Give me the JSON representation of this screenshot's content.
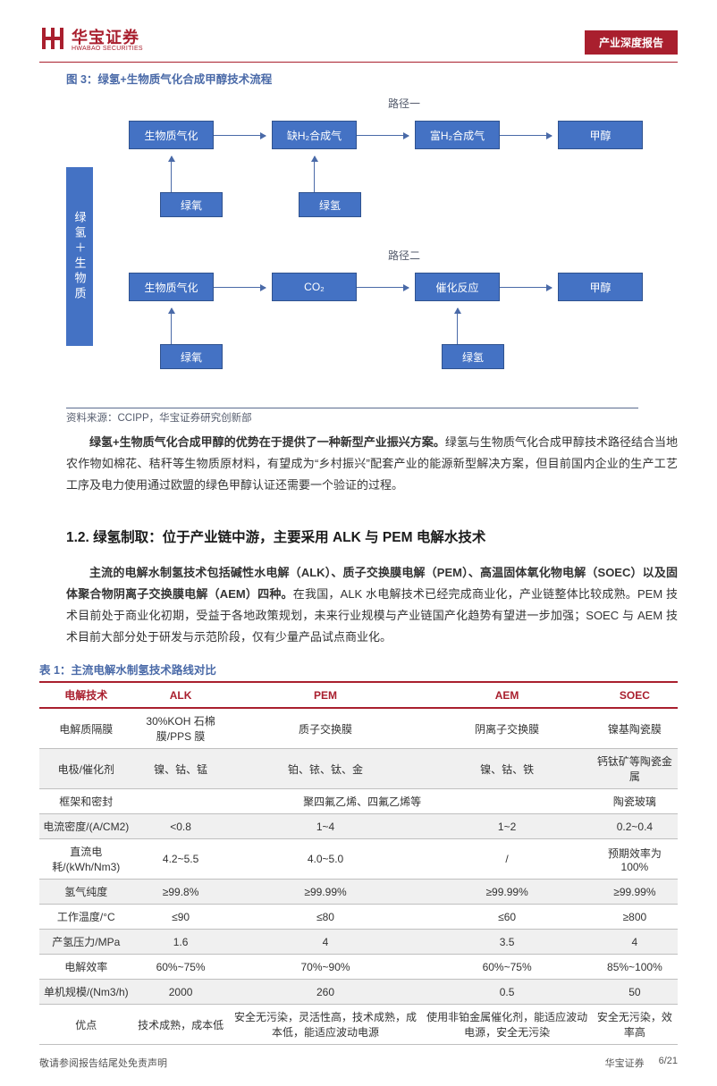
{
  "header": {
    "logo_cn": "华宝证券",
    "logo_en": "HWABAO SECURITIES",
    "badge": "产业深度报告"
  },
  "figure": {
    "title": "图 3：绿氢+生物质气化合成甲醇技术流程",
    "vbar": "绿氢＋生物质",
    "path1_label": "路径一",
    "path2_label": "路径二",
    "nodes": {
      "p1n1": "生物质气化",
      "p1n2": "缺H₂合成气",
      "p1n3": "富H₂合成气",
      "p1n4": "甲醇",
      "p1i1": "绿氧",
      "p1i2": "绿氢",
      "p2n1": "生物质气化",
      "p2n2": "CO₂",
      "p2n3": "催化反应",
      "p2n4": "甲醇",
      "p2i1": "绿氧",
      "p2i2": "绿氢"
    },
    "source": "资料来源：CCIPP，华宝证券研究创新部"
  },
  "para1_bold": "绿氢+生物质气化合成甲醇的优势在于提供了一种新型产业振兴方案。",
  "para1_rest": "绿氢与生物质气化合成甲醇技术路径结合当地农作物如棉花、秸秆等生物质原材料，有望成为“乡村振兴”配套产业的能源新型解决方案，但目前国内企业的生产工艺工序及电力使用通过欧盟的绿色甲醇认证还需要一个验证的过程。",
  "section_heading": "1.2. 绿氢制取：位于产业链中游，主要采用 ALK 与 PEM 电解水技术",
  "para2_bold": "主流的电解水制氢技术包括碱性水电解（ALK）、质子交换膜电解（PEM）、高温固体氧化物电解（SOEC）以及固体聚合物阴离子交换膜电解（AEM）四种。",
  "para2_rest": "在我国，ALK 水电解技术已经完成商业化，产业链整体比较成熟。PEM 技术目前处于商业化初期，受益于各地政策规划，未来行业规模与产业链国产化趋势有望进一步加强；SOEC 与 AEM 技术目前大部分处于研发与示范阶段，仅有少量产品试点商业化。",
  "table": {
    "title": "表 1：主流电解水制氢技术路线对比",
    "columns": [
      "电解技术",
      "ALK",
      "PEM",
      "AEM",
      "SOEC"
    ],
    "rows": [
      {
        "h": "电解质隔膜",
        "c": [
          "30%KOH 石棉膜/PPS 膜",
          "质子交换膜",
          "阴离子交换膜",
          "镍基陶瓷膜"
        ]
      },
      {
        "h": "电极/催化剂",
        "c": [
          "镍、钴、锰",
          "铂、铱、钛、金",
          "镍、钴、铁",
          "钙钛矿等陶瓷金属"
        ]
      },
      {
        "h": "框架和密封",
        "c": [
          "span3:聚四氟乙烯、四氟乙烯等",
          "",
          "",
          "陶瓷玻璃"
        ]
      },
      {
        "h": "电流密度/(A/CM2)",
        "c": [
          "<0.8",
          "1~4",
          "1~2",
          "0.2~0.4"
        ]
      },
      {
        "h": "直流电耗/(kWh/Nm3)",
        "c": [
          "4.2~5.5",
          "4.0~5.0",
          "/",
          "预期效率为 100%"
        ]
      },
      {
        "h": "氢气纯度",
        "c": [
          "≥99.8%",
          "≥99.99%",
          "≥99.99%",
          "≥99.99%"
        ]
      },
      {
        "h": "工作温度/°C",
        "c": [
          "≤90",
          "≤80",
          "≤60",
          "≥800"
        ]
      },
      {
        "h": "产氢压力/MPa",
        "c": [
          "1.6",
          "4",
          "3.5",
          "4"
        ]
      },
      {
        "h": "电解效率",
        "c": [
          "60%~75%",
          "70%~90%",
          "60%~75%",
          "85%~100%"
        ]
      },
      {
        "h": "单机规模/(Nm3/h)",
        "c": [
          "2000",
          "260",
          "0.5",
          "50"
        ]
      },
      {
        "h": "优点",
        "c": [
          "技术成熟，成本低",
          "安全无污染，灵活性高，技术成熟，成本低，能适应波动电源",
          "使用非铂金属催化剂，能适应波动电源，安全无污染",
          "安全无污染，效率高"
        ]
      }
    ]
  },
  "footer": {
    "left": "敬请参阅报告结尾处免责声明",
    "right1": "华宝证券",
    "right2": "6/21"
  }
}
